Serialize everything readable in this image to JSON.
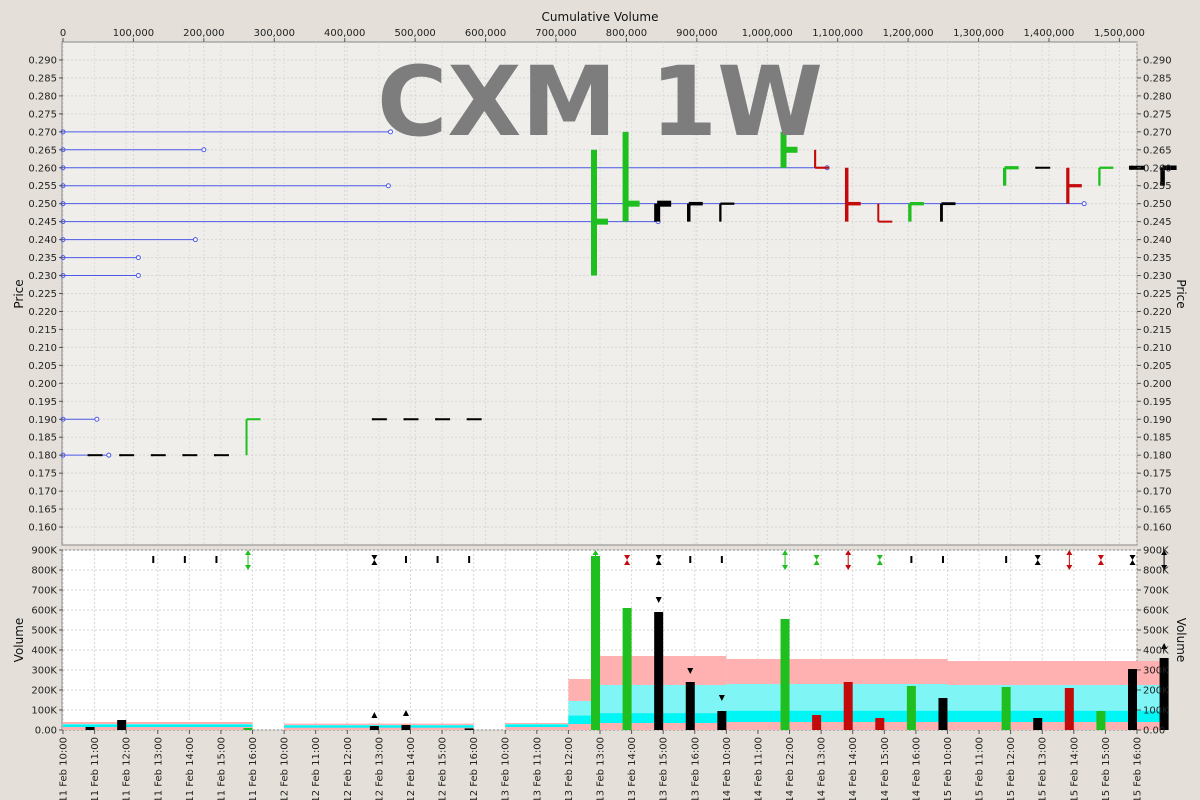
{
  "chart_data": [
    {
      "type": "price-volume-profile",
      "title": "CXM 1W",
      "top_axis_label": "Cumulative Volume",
      "ylabel": "Price",
      "ylim": [
        0.155,
        0.295
      ],
      "y_ticks": [
        "0.160",
        "0.165",
        "0.170",
        "0.175",
        "0.180",
        "0.185",
        "0.190",
        "0.195",
        "0.200",
        "0.205",
        "0.210",
        "0.215",
        "0.220",
        "0.225",
        "0.230",
        "0.235",
        "0.240",
        "0.245",
        "0.250",
        "0.255",
        "0.260",
        "0.265",
        "0.270",
        "0.275",
        "0.280",
        "0.285",
        "0.290"
      ],
      "x_ticks": [
        "0",
        "100,000",
        "200,000",
        "300,000",
        "400,000",
        "500,000",
        "600,000",
        "700,000",
        "800,000",
        "900,000",
        "1,000,000",
        "1,100,000",
        "1,200,000",
        "1,300,000",
        "1,400,000",
        "1,500,000"
      ],
      "xlim": [
        0,
        1525000
      ],
      "grid": true,
      "volume_at_price": [
        {
          "price": 0.27,
          "cum_volume": 465000
        },
        {
          "price": 0.265,
          "cum_volume": 200000
        },
        {
          "price": 0.26,
          "cum_volume": 1085000
        },
        {
          "price": 0.255,
          "cum_volume": 462000
        },
        {
          "price": 0.25,
          "cum_volume": 1450000
        },
        {
          "price": 0.245,
          "cum_volume": 845000
        },
        {
          "price": 0.24,
          "cum_volume": 188000
        },
        {
          "price": 0.235,
          "cum_volume": 107000
        },
        {
          "price": 0.23,
          "cum_volume": 107000
        },
        {
          "price": 0.19,
          "cum_volume": 48000
        },
        {
          "price": 0.18,
          "cum_volume": 65000
        }
      ],
      "bars": [
        {
          "slot": 1,
          "high": 0.18,
          "low": 0.18,
          "open": 0.18,
          "close": 0.18,
          "color": "black"
        },
        {
          "slot": 2,
          "high": 0.18,
          "low": 0.18,
          "open": 0.18,
          "close": 0.18,
          "color": "black"
        },
        {
          "slot": 3,
          "high": 0.18,
          "low": 0.18,
          "open": 0.18,
          "close": 0.18,
          "color": "black"
        },
        {
          "slot": 4,
          "high": 0.18,
          "low": 0.18,
          "open": 0.18,
          "close": 0.18,
          "color": "black"
        },
        {
          "slot": 5,
          "high": 0.18,
          "low": 0.18,
          "open": 0.18,
          "close": 0.18,
          "color": "black"
        },
        {
          "slot": 6,
          "high": 0.19,
          "low": 0.18,
          "open": 0.19,
          "close": 0.19,
          "color": "green"
        },
        {
          "slot": 10,
          "high": 0.19,
          "low": 0.19,
          "open": 0.19,
          "close": 0.19,
          "color": "black"
        },
        {
          "slot": 11,
          "high": 0.19,
          "low": 0.19,
          "open": 0.19,
          "close": 0.19,
          "color": "black"
        },
        {
          "slot": 12,
          "high": 0.19,
          "low": 0.19,
          "open": 0.19,
          "close": 0.19,
          "color": "black"
        },
        {
          "slot": 13,
          "high": 0.19,
          "low": 0.19,
          "open": 0.19,
          "close": 0.19,
          "color": "black"
        },
        {
          "slot": 17,
          "high": 0.265,
          "low": 0.23,
          "open": 0.245,
          "close": 0.245,
          "color": "green"
        },
        {
          "slot": 18,
          "high": 0.27,
          "low": 0.245,
          "open": 0.25,
          "close": 0.25,
          "color": "green"
        },
        {
          "slot": 19,
          "high": 0.25,
          "low": 0.245,
          "open": 0.25,
          "close": 0.25,
          "color": "black"
        },
        {
          "slot": 20,
          "high": 0.25,
          "low": 0.245,
          "open": 0.25,
          "close": 0.25,
          "color": "black"
        },
        {
          "slot": 21,
          "high": 0.25,
          "low": 0.245,
          "open": 0.25,
          "close": 0.25,
          "color": "black"
        },
        {
          "slot": 23,
          "high": 0.27,
          "low": 0.26,
          "open": 0.265,
          "close": 0.265,
          "color": "green"
        },
        {
          "slot": 24,
          "high": 0.265,
          "low": 0.26,
          "open": 0.26,
          "close": 0.26,
          "color": "red"
        },
        {
          "slot": 25,
          "high": 0.26,
          "low": 0.245,
          "open": 0.25,
          "close": 0.25,
          "color": "red"
        },
        {
          "slot": 26,
          "high": 0.25,
          "low": 0.245,
          "open": 0.245,
          "close": 0.245,
          "color": "red"
        },
        {
          "slot": 27,
          "high": 0.25,
          "low": 0.245,
          "open": 0.25,
          "close": 0.25,
          "color": "green"
        },
        {
          "slot": 28,
          "high": 0.25,
          "low": 0.245,
          "open": 0.25,
          "close": 0.25,
          "color": "black"
        },
        {
          "slot": 30,
          "high": 0.26,
          "low": 0.255,
          "open": 0.26,
          "close": 0.26,
          "color": "green"
        },
        {
          "slot": 31,
          "high": 0.26,
          "low": 0.26,
          "open": 0.26,
          "close": 0.26,
          "color": "black"
        },
        {
          "slot": 32,
          "high": 0.26,
          "low": 0.25,
          "open": 0.255,
          "close": 0.255,
          "color": "red"
        },
        {
          "slot": 33,
          "high": 0.26,
          "low": 0.255,
          "open": 0.26,
          "close": 0.26,
          "color": "green"
        },
        {
          "slot": 34,
          "high": 0.26,
          "low": 0.26,
          "open": 0.26,
          "close": 0.26,
          "color": "black"
        },
        {
          "slot": 35,
          "high": 0.26,
          "low": 0.255,
          "open": 0.26,
          "close": 0.26,
          "color": "black"
        }
      ]
    },
    {
      "type": "volume-bar",
      "ylabel": "Volume",
      "ylim": [
        0,
        900000
      ],
      "y_ticks": [
        "0.00",
        "100K",
        "200K",
        "300K",
        "400K",
        "500K",
        "600K",
        "700K",
        "800K",
        "900K"
      ],
      "x_ticks": [
        "11 Feb 10:00",
        "11 Feb 11:00",
        "11 Feb 12:00",
        "11 Feb 13:00",
        "11 Feb 14:00",
        "11 Feb 15:00",
        "11 Feb 16:00",
        "12 Feb 10:00",
        "12 Feb 11:00",
        "12 Feb 12:00",
        "12 Feb 13:00",
        "12 Feb 14:00",
        "12 Feb 15:00",
        "12 Feb 16:00",
        "13 Feb 10:00",
        "13 Feb 11:00",
        "13 Feb 12:00",
        "13 Feb 13:00",
        "13 Feb 14:00",
        "13 Feb 15:00",
        "13 Feb 16:00",
        "14 Feb 10:00",
        "14 Feb 11:00",
        "14 Feb 12:00",
        "14 Feb 13:00",
        "14 Feb 14:00",
        "14 Feb 15:00",
        "14 Feb 16:00",
        "15 Feb 10:00",
        "15 Feb 11:00",
        "15 Feb 12:00",
        "15 Feb 13:00",
        "15 Feb 14:00",
        "15 Feb 15:00",
        "15 Feb 16:00"
      ],
      "grid": true,
      "volumes": [
        {
          "slot": 1,
          "value": 15000,
          "color": "black"
        },
        {
          "slot": 2,
          "value": 50000,
          "color": "black"
        },
        {
          "slot": 6,
          "value": 10000,
          "color": "green"
        },
        {
          "slot": 10,
          "value": 20000,
          "color": "black"
        },
        {
          "slot": 11,
          "value": 25000,
          "color": "black"
        },
        {
          "slot": 13,
          "value": 8000,
          "color": "black"
        },
        {
          "slot": 17,
          "value": 870000,
          "color": "green"
        },
        {
          "slot": 18,
          "value": 610000,
          "color": "green"
        },
        {
          "slot": 19,
          "value": 590000,
          "color": "black"
        },
        {
          "slot": 20,
          "value": 240000,
          "color": "black"
        },
        {
          "slot": 21,
          "value": 95000,
          "color": "black"
        },
        {
          "slot": 23,
          "value": 555000,
          "color": "green"
        },
        {
          "slot": 24,
          "value": 75000,
          "color": "red"
        },
        {
          "slot": 25,
          "value": 240000,
          "color": "red"
        },
        {
          "slot": 26,
          "value": 60000,
          "color": "red"
        },
        {
          "slot": 27,
          "value": 220000,
          "color": "green"
        },
        {
          "slot": 28,
          "value": 160000,
          "color": "black"
        },
        {
          "slot": 30,
          "value": 215000,
          "color": "green"
        },
        {
          "slot": 31,
          "value": 60000,
          "color": "black"
        },
        {
          "slot": 32,
          "value": 210000,
          "color": "red"
        },
        {
          "slot": 33,
          "value": 95000,
          "color": "green"
        },
        {
          "slot": 34,
          "value": 305000,
          "color": "black"
        },
        {
          "slot": 35,
          "value": 360000,
          "color": "black"
        }
      ],
      "bands": [
        {
          "from": 0,
          "to": 6,
          "outer": 40000,
          "mid": 30000,
          "inner": 15000
        },
        {
          "from": 7,
          "to": 13,
          "outer": 32000,
          "mid": 25000,
          "inner": 12000
        },
        {
          "from": 14,
          "to": 16,
          "outer": 35000,
          "mid": 30000,
          "inner": 15000
        },
        {
          "from": 16,
          "to": 17,
          "outer": 255000,
          "mid": 145000,
          "inner": 30000
        },
        {
          "from": 17,
          "to": 21,
          "outer": 370000,
          "mid": 225000,
          "inner": 35000
        },
        {
          "from": 21,
          "to": 28,
          "outer": 355000,
          "mid": 230000,
          "inner": 40000
        },
        {
          "from": 28,
          "to": 35,
          "outer": 345000,
          "mid": 225000,
          "inner": 40000
        }
      ],
      "flags": [
        {
          "slot": 3,
          "kind": "tick",
          "color": "black"
        },
        {
          "slot": 4,
          "kind": "tick",
          "color": "black"
        },
        {
          "slot": 5,
          "kind": "tick",
          "color": "black"
        },
        {
          "slot": 6,
          "kind": "updown",
          "color": "green"
        },
        {
          "slot": 10,
          "kind": "bow",
          "color": "black"
        },
        {
          "slot": 11,
          "kind": "tick",
          "color": "black"
        },
        {
          "slot": 12,
          "kind": "tick",
          "color": "black"
        },
        {
          "slot": 13,
          "kind": "tick",
          "color": "black"
        },
        {
          "slot": 17,
          "kind": "updown",
          "color": "green"
        },
        {
          "slot": 18,
          "kind": "bow",
          "color": "red"
        },
        {
          "slot": 19,
          "kind": "bow",
          "color": "black"
        },
        {
          "slot": 20,
          "kind": "tick",
          "color": "black"
        },
        {
          "slot": 21,
          "kind": "tick",
          "color": "black"
        },
        {
          "slot": 23,
          "kind": "updown",
          "color": "green"
        },
        {
          "slot": 24,
          "kind": "bow",
          "color": "green"
        },
        {
          "slot": 25,
          "kind": "updown",
          "color": "red"
        },
        {
          "slot": 26,
          "kind": "bow",
          "color": "green"
        },
        {
          "slot": 27,
          "kind": "tick",
          "color": "black"
        },
        {
          "slot": 28,
          "kind": "tick",
          "color": "black"
        },
        {
          "slot": 30,
          "kind": "tick",
          "color": "black"
        },
        {
          "slot": 31,
          "kind": "bow",
          "color": "black"
        },
        {
          "slot": 32,
          "kind": "updown",
          "color": "red"
        },
        {
          "slot": 33,
          "kind": "bow",
          "color": "red"
        },
        {
          "slot": 34,
          "kind": "bow",
          "color": "black"
        },
        {
          "slot": 35,
          "kind": "updown",
          "color": "black"
        }
      ],
      "markers": [
        {
          "slot": 10,
          "value": 75000,
          "dir": "up"
        },
        {
          "slot": 11,
          "value": 85000,
          "dir": "up"
        },
        {
          "slot": 19,
          "value": 650000,
          "dir": "down"
        },
        {
          "slot": 20,
          "value": 295000,
          "dir": "down"
        },
        {
          "slot": 21,
          "value": 160000,
          "dir": "down"
        },
        {
          "slot": 35,
          "value": 420000,
          "dir": "up"
        }
      ]
    }
  ],
  "colors": {
    "green": "#1fbf1f",
    "red": "#c40b0b",
    "black": "#000000",
    "profile": "#4d5ae8",
    "band_outer": "#ffb0b0",
    "band_mid": "#7ff5f5",
    "band_inner": "#00f5f5",
    "plot_bg_top": "#f0eeea",
    "plot_bg_bottom": "#ffffff",
    "grid": "#d6d6d6"
  }
}
